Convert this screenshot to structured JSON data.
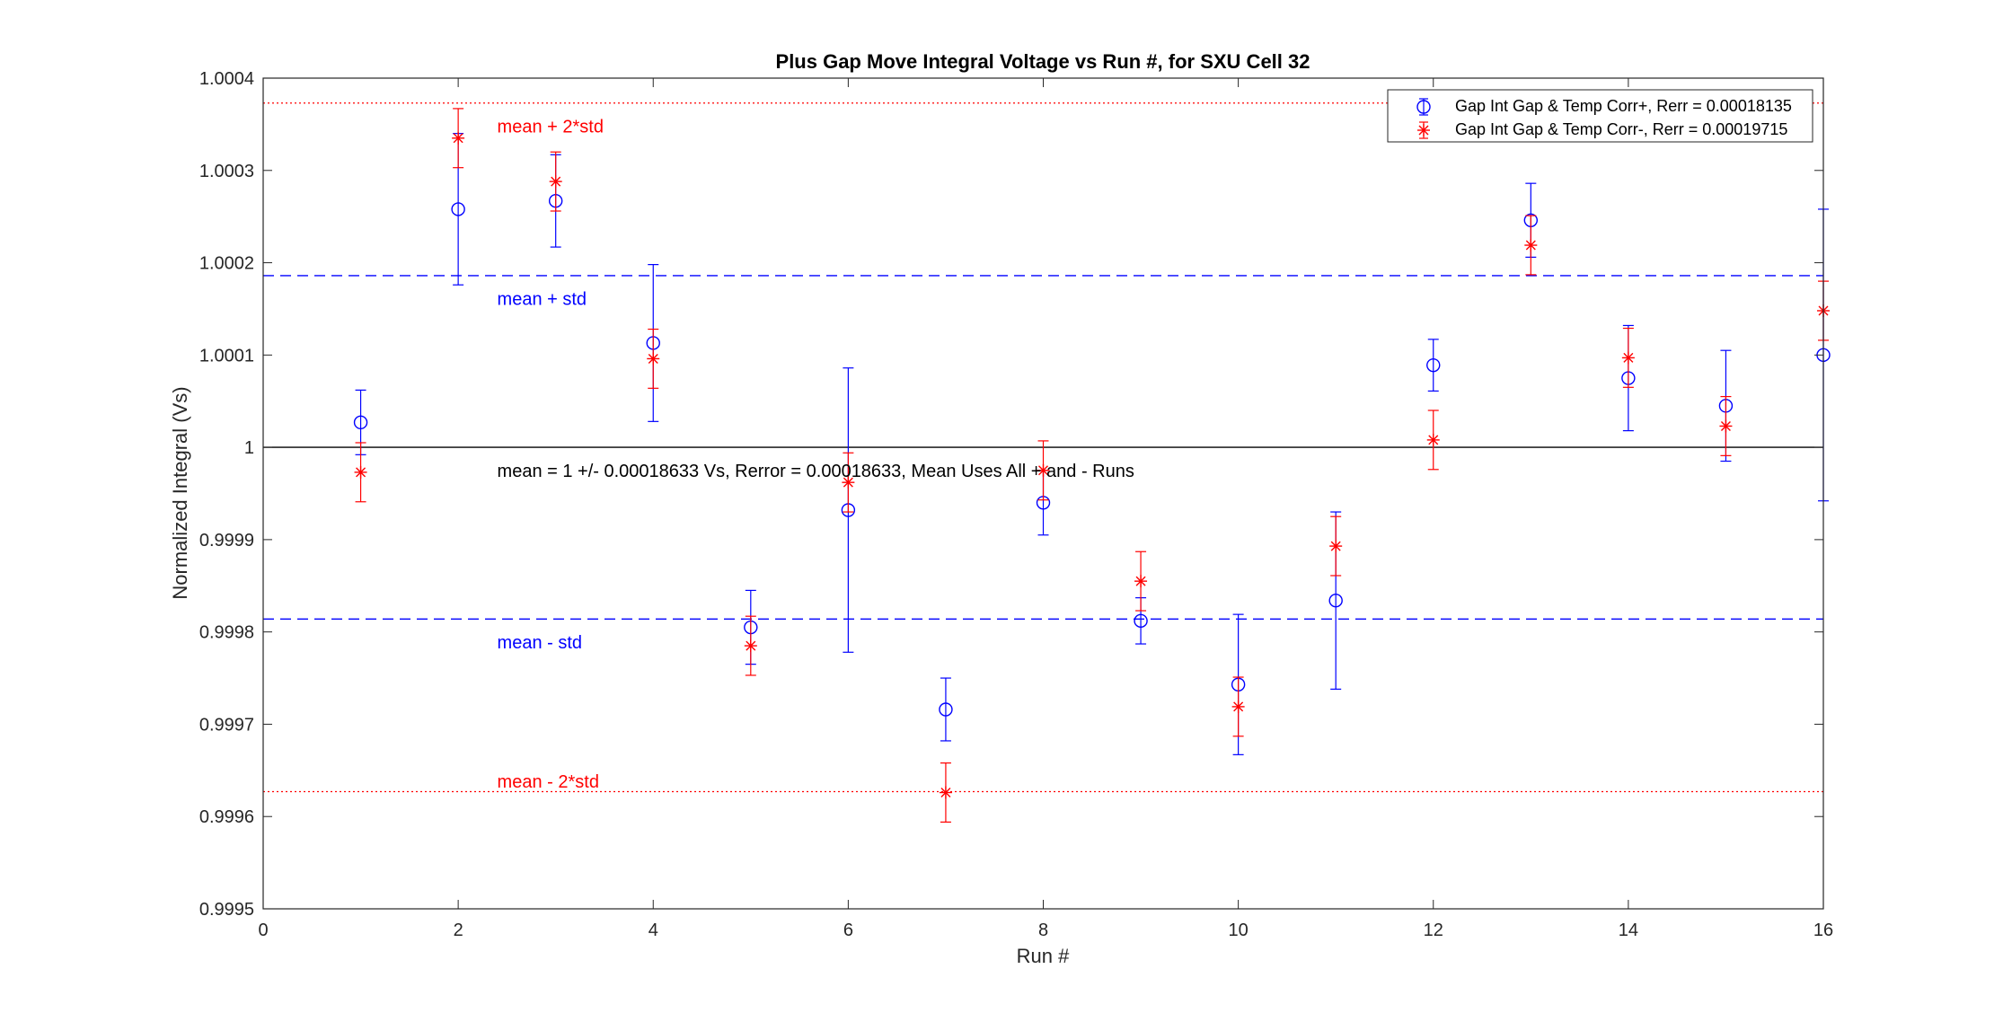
{
  "chart_data": {
    "type": "scatter",
    "title": "Plus Gap Move Integral Voltage vs Run #, for SXU Cell 32",
    "xlabel": "Run #",
    "ylabel": "Normalized Integral (Vs)",
    "xlim": [
      0,
      16
    ],
    "ylim": [
      0.9995,
      1.0004
    ],
    "xticks": [
      0,
      2,
      4,
      6,
      8,
      10,
      12,
      14,
      16
    ],
    "xtick_labels": [
      "0",
      "2",
      "4",
      "6",
      "8",
      "10",
      "12",
      "14",
      "16"
    ],
    "yticks": [
      0.9995,
      0.9996,
      0.9997,
      0.9998,
      0.9999,
      1.0,
      1.0001,
      1.0002,
      1.0003,
      1.0004
    ],
    "ytick_labels": [
      "0.9995",
      "0.9996",
      "0.9997",
      "0.9998",
      "0.9999",
      "1",
      "1.0001",
      "1.0002",
      "1.0003",
      "1.0004"
    ],
    "grid": false,
    "legend_position": "top-right",
    "series": [
      {
        "name": "Gap Int Gap & Temp Corr+, Rerr = 0.00018135",
        "color": "#0000ff",
        "marker": "circle",
        "x": [
          1,
          2,
          3,
          4,
          5,
          6,
          7,
          8,
          9,
          10,
          11,
          12,
          13,
          14,
          15,
          16
        ],
        "y": [
          1.000027,
          1.000258,
          1.000267,
          1.000113,
          0.999805,
          0.999932,
          0.999716,
          0.99994,
          0.999812,
          0.999743,
          0.999834,
          1.000089,
          1.000246,
          1.000075,
          1.000045,
          1.0001
        ],
        "err": [
          3.5e-05,
          8.2e-05,
          5e-05,
          8.5e-05,
          4e-05,
          0.000154,
          3.4e-05,
          3.5e-05,
          2.5e-05,
          7.6e-05,
          9.6e-05,
          2.8e-05,
          4e-05,
          5.7e-05,
          6e-05,
          0.000158
        ]
      },
      {
        "name": "Gap Int Gap & Temp  Corr-, Rerr = 0.00019715",
        "color": "#ff0000",
        "marker": "asterisk",
        "x": [
          1,
          2,
          3,
          4,
          5,
          6,
          7,
          8,
          9,
          10,
          11,
          12,
          13,
          14,
          15,
          16
        ],
        "y": [
          0.999973,
          1.000335,
          1.000288,
          1.000096,
          0.999785,
          0.999962,
          0.999626,
          0.999975,
          0.999855,
          0.999719,
          0.999893,
          1.000008,
          1.000219,
          1.000097,
          1.000023,
          1.000148
        ]
      }
    ],
    "reference_lines": [
      {
        "id": "mean",
        "y": 1.0,
        "color": "#000000",
        "style": "solid"
      },
      {
        "id": "mean-plus-std",
        "y": 1.000186,
        "color": "#0000ff",
        "style": "dashed"
      },
      {
        "id": "mean-minus-std",
        "y": 0.999814,
        "color": "#0000ff",
        "style": "dashed"
      },
      {
        "id": "mean-plus-2std",
        "y": 1.000373,
        "color": "#ff0000",
        "style": "dotted"
      },
      {
        "id": "mean-minus-2std",
        "y": 0.999627,
        "color": "#ff0000",
        "style": "dotted"
      }
    ],
    "annotations": [
      {
        "id": "mean-plus-2std-label",
        "text": "mean + 2*std",
        "x": 2.4,
        "y": 1.000348,
        "color": "#ff0000"
      },
      {
        "id": "mean-plus-std-label",
        "text": "mean + std",
        "x": 2.4,
        "y": 1.000161,
        "color": "#0000ff"
      },
      {
        "id": "mean-label",
        "text": "mean = 1 +/- 0.00018633 Vs, Rerror = 0.00018633, Mean Uses All + and - Runs",
        "x": 2.4,
        "y": 0.999975,
        "color": "#000000"
      },
      {
        "id": "mean-minus-std-label",
        "text": "mean - std",
        "x": 2.4,
        "y": 0.999789,
        "color": "#0000ff"
      },
      {
        "id": "mean-minus-2std-label",
        "text": "mean - 2*std",
        "x": 2.4,
        "y": 0.999638,
        "color": "#ff0000"
      }
    ]
  }
}
